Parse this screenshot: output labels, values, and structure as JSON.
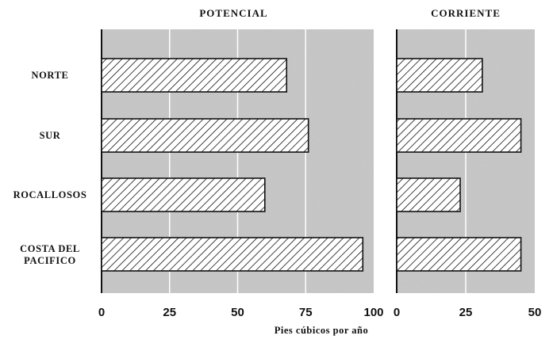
{
  "chart_data": {
    "type": "bar",
    "orientation": "horizontal",
    "categories": [
      "NORTE",
      "SUR",
      "ROCALLOSOS",
      "COSTA DEL PACIFICO"
    ],
    "xlabel": "Pies cúbicos por año",
    "grid": true,
    "panels": [
      {
        "title": "POTENCIAL",
        "values": [
          68,
          76,
          60,
          96
        ],
        "xlim": [
          0,
          100
        ],
        "ticks": [
          "0",
          "25",
          "50",
          "75",
          "100"
        ]
      },
      {
        "title": "CORRIENTE",
        "values": [
          31,
          45,
          23,
          45
        ],
        "xlim": [
          0,
          50
        ],
        "ticks": [
          "0",
          "25",
          "50"
        ]
      }
    ]
  }
}
